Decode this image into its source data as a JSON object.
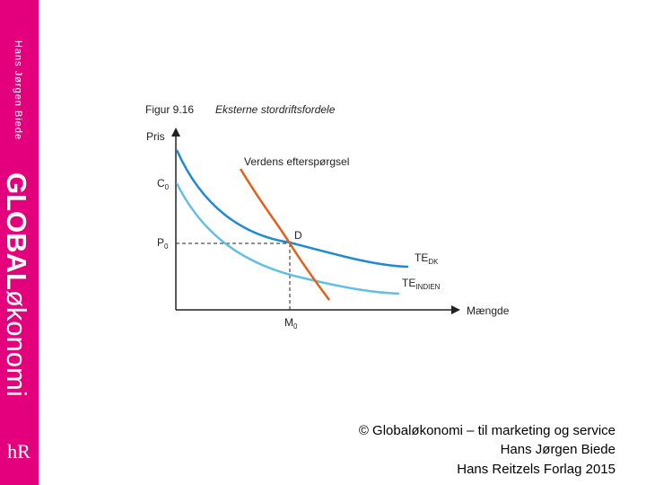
{
  "sidebar": {
    "author": "Hans Jørgen Biede",
    "brand_bold": "GLOBAL",
    "brand_light": "økonomi",
    "logo": "hR"
  },
  "figure": {
    "number": "Figur 9.16",
    "title": "Eksterne stordriftsfordele",
    "y_axis": "Pris",
    "x_axis": "Mængde",
    "c0": {
      "main": "C",
      "sub": "0"
    },
    "p0": {
      "main": "P",
      "sub": "0"
    },
    "m0": {
      "main": "M",
      "sub": "0"
    },
    "point": "D",
    "demand": "Verdens efterspørgsel",
    "te_dk": {
      "main": "TE",
      "sub": "DK"
    },
    "te_indien": {
      "main": "TE",
      "sub": "INDIEN"
    }
  },
  "footer": {
    "lines": [
      "© Globaløkonomi – til marketing og service",
      "Hans Jørgen Biede",
      "Hans Reitzels Forlag 2015"
    ]
  }
}
